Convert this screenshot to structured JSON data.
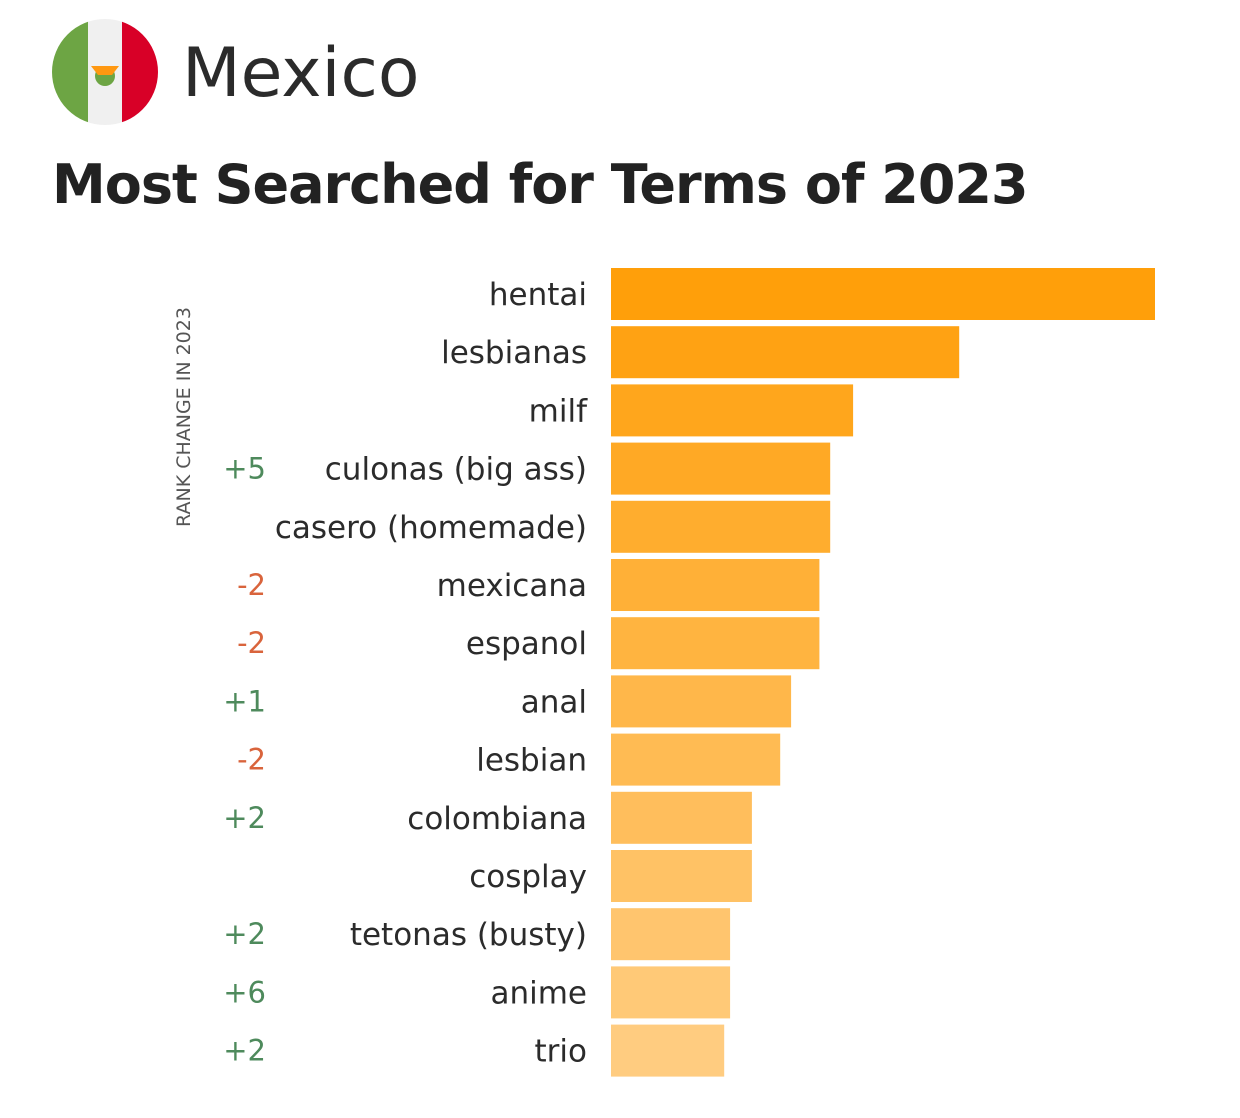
{
  "header": {
    "country": "Mexico",
    "title": "Most Searched for Terms of 2023"
  },
  "colors": {
    "bar_start": "#FF9F0A",
    "bar_end": "#FFCC80",
    "positive_change": "#4E8A5C",
    "negative_change": "#D9643C",
    "flag_green": "#6DA544",
    "flag_white": "#F0F0F0",
    "flag_red": "#D80027",
    "flag_emblem": "#FF9811"
  },
  "chart_data": {
    "type": "bar",
    "orientation": "horizontal",
    "title": "Most Searched for Terms of 2023",
    "rank_change_label": "RANK CHANGE IN 2023",
    "categories": [
      "hentai",
      "lesbianas",
      "milf",
      "culonas (big ass)",
      "casero (homemade)",
      "mexicana",
      "espanol",
      "anal",
      "lesbian",
      "colombiana",
      "cosplay",
      "tetonas (busty)",
      "anime",
      "trio"
    ],
    "values": [
      100,
      64,
      44.5,
      40.3,
      40.3,
      38.3,
      38.3,
      33.1,
      31.1,
      25.9,
      25.9,
      21.9,
      21.9,
      20.8
    ],
    "rank_change": [
      "",
      "",
      "",
      "+5",
      "",
      "-2",
      "-2",
      "+1",
      "-2",
      "+2",
      "",
      "+2",
      "+6",
      "+2"
    ],
    "xlim": [
      0,
      100
    ],
    "grid": false,
    "legend": "none"
  }
}
